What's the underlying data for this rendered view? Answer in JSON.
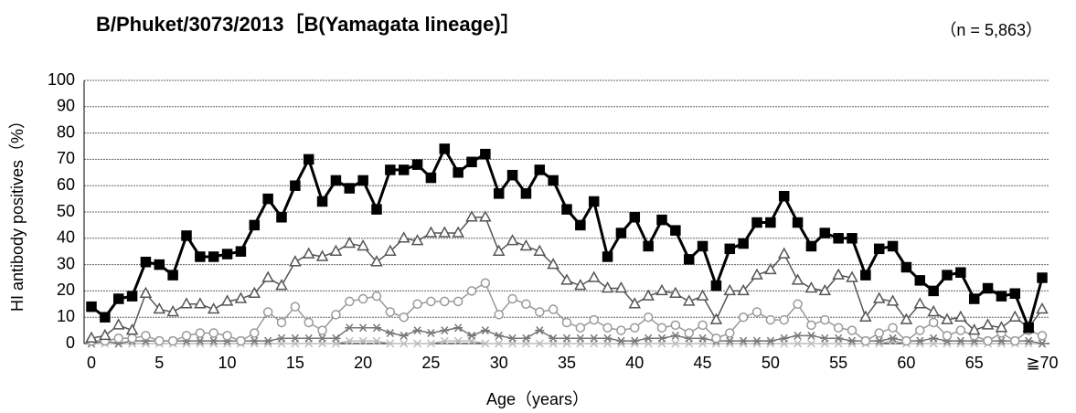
{
  "chart_data": {
    "type": "line",
    "title": "B/Phuket/3073/2013［B(Yamagata lineage)］",
    "subtitle": "（n = 5,863）",
    "x_label": "Age（years）",
    "y_label": "HI antibody positives（%）",
    "categories": [
      "0",
      null,
      null,
      null,
      null,
      "5",
      null,
      null,
      null,
      null,
      "10",
      null,
      null,
      null,
      null,
      "15",
      null,
      null,
      null,
      null,
      "20",
      null,
      null,
      null,
      null,
      "25",
      null,
      null,
      null,
      null,
      "30",
      null,
      null,
      null,
      null,
      "35",
      null,
      null,
      null,
      null,
      "40",
      null,
      null,
      null,
      null,
      "45",
      null,
      null,
      null,
      null,
      "50",
      null,
      null,
      null,
      null,
      "55",
      null,
      null,
      null,
      null,
      "60",
      null,
      null,
      null,
      null,
      "65",
      null,
      null,
      null,
      null,
      "≧70"
    ],
    "ylim": [
      0,
      100
    ],
    "yticks": [
      0,
      10,
      20,
      30,
      40,
      50,
      60,
      70,
      80,
      90,
      100
    ],
    "grid": true,
    "series": [
      {
        "color": "#000000",
        "marker": "square",
        "values": [
          14,
          10,
          17,
          18,
          31,
          30,
          26,
          41,
          33,
          33,
          34,
          35,
          45,
          55,
          48,
          60,
          70,
          54,
          62,
          59,
          62,
          51,
          66,
          66,
          68,
          63,
          74,
          65,
          69,
          72,
          57,
          64,
          57,
          66,
          62,
          51,
          45,
          54,
          33,
          42,
          48,
          37,
          47,
          43,
          32,
          37,
          22,
          36,
          38,
          46,
          46,
          56,
          46,
          37,
          42,
          40,
          40,
          26,
          36,
          37,
          29,
          24,
          20,
          26,
          27,
          17,
          21,
          18,
          19,
          6,
          25
        ]
      },
      {
        "color": "#555555",
        "marker": "triangle",
        "values": [
          2,
          3,
          7,
          5,
          19,
          13,
          12,
          15,
          15,
          13,
          16,
          17,
          19,
          25,
          22,
          31,
          34,
          33,
          35,
          38,
          37,
          31,
          35,
          40,
          39,
          42,
          42,
          42,
          48,
          48,
          35,
          39,
          37,
          35,
          30,
          24,
          22,
          25,
          21,
          21,
          15,
          18,
          20,
          19,
          16,
          18,
          9,
          20,
          20,
          26,
          28,
          34,
          24,
          21,
          20,
          26,
          25,
          10,
          17,
          16,
          9,
          15,
          12,
          9,
          10,
          5,
          7,
          6,
          10,
          6,
          13
        ]
      },
      {
        "color": "#999999",
        "marker": "circle",
        "values": [
          1,
          1,
          2,
          2,
          3,
          1,
          1,
          3,
          4,
          4,
          3,
          1,
          4,
          12,
          8,
          14,
          8,
          5,
          11,
          16,
          17,
          18,
          12,
          10,
          15,
          16,
          16,
          16,
          20,
          23,
          11,
          17,
          15,
          12,
          13,
          8,
          6,
          9,
          6,
          5,
          6,
          10,
          6,
          7,
          4,
          7,
          2,
          4,
          10,
          12,
          9,
          9,
          15,
          7,
          9,
          6,
          5,
          1,
          4,
          6,
          1,
          5,
          8,
          3,
          5,
          3,
          1,
          4,
          1,
          5,
          3
        ]
      },
      {
        "color": "#777777",
        "marker": "asterisk",
        "values": [
          0,
          1,
          0,
          1,
          1,
          1,
          1,
          1,
          1,
          1,
          1,
          1,
          1,
          1,
          2,
          2,
          2,
          2,
          2,
          6,
          6,
          6,
          4,
          3,
          5,
          4,
          5,
          6,
          3,
          5,
          3,
          2,
          2,
          5,
          2,
          2,
          2,
          2,
          2,
          1,
          1,
          2,
          2,
          3,
          2,
          2,
          1,
          1,
          1,
          1,
          1,
          2,
          3,
          3,
          2,
          2,
          1,
          1,
          1,
          2,
          1,
          1,
          2,
          1,
          1,
          1,
          1,
          1,
          1,
          1,
          0
        ]
      },
      {
        "color": "#bbbbbb",
        "marker": "cross",
        "values": [
          0,
          0,
          0,
          0,
          0,
          0,
          0,
          0,
          0,
          0,
          0,
          0,
          0,
          0,
          0,
          0,
          0,
          0,
          0,
          1,
          1,
          1,
          0,
          0,
          0,
          0,
          1,
          1,
          1,
          0,
          0,
          0,
          0,
          0,
          0,
          0,
          0,
          0,
          0,
          0,
          0,
          0,
          0,
          0,
          0,
          0,
          0,
          0,
          0,
          0,
          0,
          0,
          0,
          0,
          0,
          0,
          0,
          0,
          0,
          1,
          0,
          0,
          0,
          0,
          0,
          0,
          0,
          0,
          0,
          0,
          0
        ]
      }
    ]
  }
}
